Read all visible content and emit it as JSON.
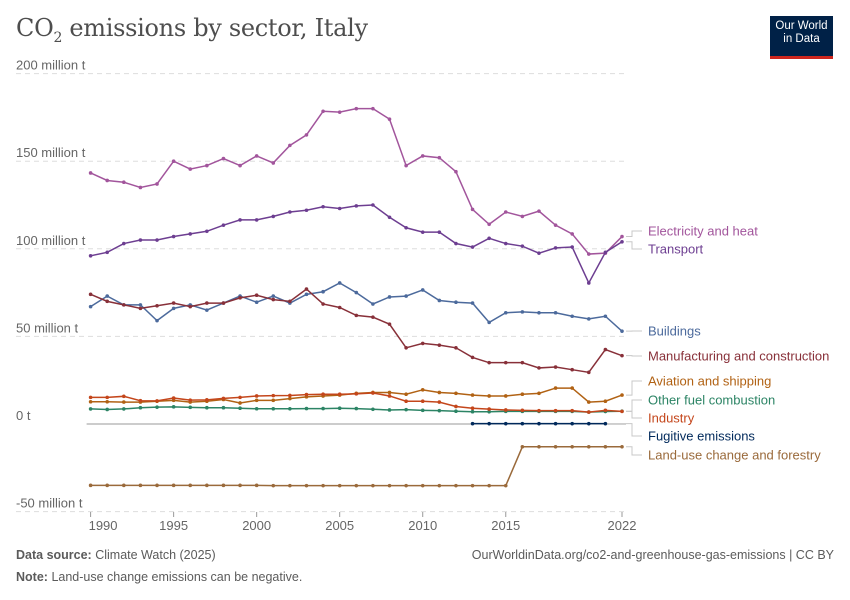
{
  "header": {
    "title_main": "CO",
    "title_sub": "2",
    "title_rest": " emissions by sector, Italy"
  },
  "logo": {
    "line1": "Our World",
    "line2": "in Data",
    "bg": "#002147",
    "accent": "#ce261e"
  },
  "footer": {
    "source_label": "Data source:",
    "source_value": "Climate Watch (2025)",
    "url": "OurWorldinData.org/co2-and-greenhouse-gas-emissions | CC BY",
    "note_label": "Note:",
    "note_value": "Land-use change emissions can be negative."
  },
  "chart_data": {
    "type": "line",
    "title": "CO₂ emissions by sector, Italy",
    "xlabel": "",
    "ylabel": "",
    "ylim": [
      -50,
      200
    ],
    "xlim": [
      1990,
      2022
    ],
    "y_ticks": [
      {
        "v": -50,
        "label": "-50 million t"
      },
      {
        "v": 0,
        "label": "0 t"
      },
      {
        "v": 50,
        "label": "50 million t"
      },
      {
        "v": 100,
        "label": "100 million t"
      },
      {
        "v": 150,
        "label": "150 million t"
      },
      {
        "v": 200,
        "label": "200 million t"
      }
    ],
    "x_ticks": [
      {
        "v": 1990,
        "label": "1990"
      },
      {
        "v": 1995,
        "label": "1995"
      },
      {
        "v": 2000,
        "label": "2000"
      },
      {
        "v": 2005,
        "label": "2005"
      },
      {
        "v": 2010,
        "label": "2010"
      },
      {
        "v": 2015,
        "label": "2015"
      },
      {
        "v": 2022,
        "label": "2022"
      }
    ],
    "grid": "horizontal dashed",
    "legend": "right (line-end labels)",
    "x_start": 1990,
    "series": [
      {
        "name": "Electricity and heat",
        "color": "#a2559c",
        "start": 1990,
        "values": [
          143.3,
          139,
          138,
          135,
          137,
          150,
          145.5,
          147.5,
          151.5,
          147.5,
          153,
          149,
          159,
          165,
          178.5,
          178,
          180,
          180,
          174,
          147.5,
          153,
          152,
          144,
          122.5,
          114,
          121,
          118.5,
          121.5,
          113.5,
          108.5,
          97,
          97.5,
          107
        ]
      },
      {
        "name": "Transport",
        "color": "#6d3e91",
        "start": 1990,
        "values": [
          96,
          98,
          103,
          105,
          105,
          107,
          108.5,
          110,
          113.5,
          116.5,
          116.5,
          118.5,
          121,
          122,
          124,
          123,
          124.5,
          125,
          118,
          112,
          109.5,
          109.5,
          103,
          101,
          106,
          103,
          101.5,
          97.5,
          100.5,
          101,
          80.5,
          98,
          104
        ]
      },
      {
        "name": "Buildings",
        "color": "#4c6a9c",
        "start": 1990,
        "values": [
          67,
          73,
          68,
          68,
          59,
          66,
          68,
          65,
          69,
          73,
          69.5,
          73,
          69,
          74,
          75.5,
          80.5,
          75,
          68.5,
          72.5,
          73,
          76.5,
          70.5,
          69.5,
          69,
          58,
          63.5,
          64,
          63.5,
          63.5,
          61.5,
          60,
          61.5,
          53
        ]
      },
      {
        "name": "Manufacturing and construction",
        "color": "#883039",
        "start": 1990,
        "values": [
          74,
          70,
          68,
          66,
          67.5,
          69,
          67,
          69,
          69,
          72,
          73.5,
          71,
          70,
          77,
          68.5,
          66.5,
          62,
          61,
          57,
          43.5,
          46,
          45,
          43.5,
          38,
          35,
          35,
          35,
          32,
          32.5,
          31,
          29.5,
          42.5,
          39
        ]
      },
      {
        "name": "Aviation and shipping",
        "color": "#b16214",
        "start": 1990,
        "values": [
          12.7,
          12.7,
          12.5,
          12.5,
          13,
          13.5,
          12.5,
          13,
          14,
          12,
          13.5,
          13.5,
          14.5,
          15.5,
          16,
          16.5,
          17.5,
          18,
          18,
          17,
          19.5,
          18,
          17.5,
          16.5,
          16,
          16,
          17,
          17.5,
          20.5,
          20.5,
          12.5,
          13,
          16.5
        ]
      },
      {
        "name": "Other fuel combustion",
        "color": "#2c8465",
        "start": 1990,
        "values": [
          8.6,
          8.3,
          8.6,
          9.3,
          9.6,
          9.8,
          9.5,
          9.3,
          9.3,
          9,
          8.7,
          8.7,
          8.7,
          8.8,
          8.8,
          9,
          8.8,
          8.4,
          8,
          8.2,
          7.8,
          7.6,
          7.3,
          7,
          7,
          7.2,
          7.2,
          7.2,
          7.2,
          7.2,
          6.8,
          7.1,
          7.3
        ]
      },
      {
        "name": "Industry",
        "color": "#c4461b",
        "start": 1990,
        "values": [
          15.2,
          15.2,
          15.8,
          13.3,
          13.2,
          14.8,
          13.6,
          13.8,
          14.6,
          15.2,
          16,
          16.2,
          16.3,
          16.8,
          17,
          17,
          17.2,
          17.7,
          16,
          13,
          13,
          12.5,
          10,
          9,
          8.5,
          8,
          7.8,
          7.6,
          7.6,
          7.6,
          6.8,
          7.8,
          7.2
        ]
      },
      {
        "name": "Fugitive emissions",
        "color": "#00295b",
        "start": 2013,
        "values": [
          0.2,
          0.2,
          0.2,
          0.2,
          0.2,
          0.2,
          0.2,
          0.2,
          0.2
        ]
      },
      {
        "name": "Land-use change and forestry",
        "color": "#9a6a3b",
        "start": 1990,
        "values": [
          -35,
          -35,
          -35,
          -35,
          -35,
          -35,
          -35,
          -35,
          -35,
          -35,
          -35,
          -35.2,
          -35.2,
          -35.2,
          -35.2,
          -35.2,
          -35.2,
          -35.2,
          -35.2,
          -35.2,
          -35.2,
          -35.2,
          -35.2,
          -35.2,
          -35.2,
          -35.2,
          -13,
          -13,
          -13,
          -13,
          -13,
          -13,
          -13
        ]
      }
    ],
    "label_order": [
      "Electricity and heat",
      "Transport",
      "Buildings",
      "Manufacturing and construction",
      "Aviation and shipping",
      "Other fuel combustion",
      "Industry",
      "Fugitive emissions",
      "Land-use change and forestry"
    ]
  }
}
